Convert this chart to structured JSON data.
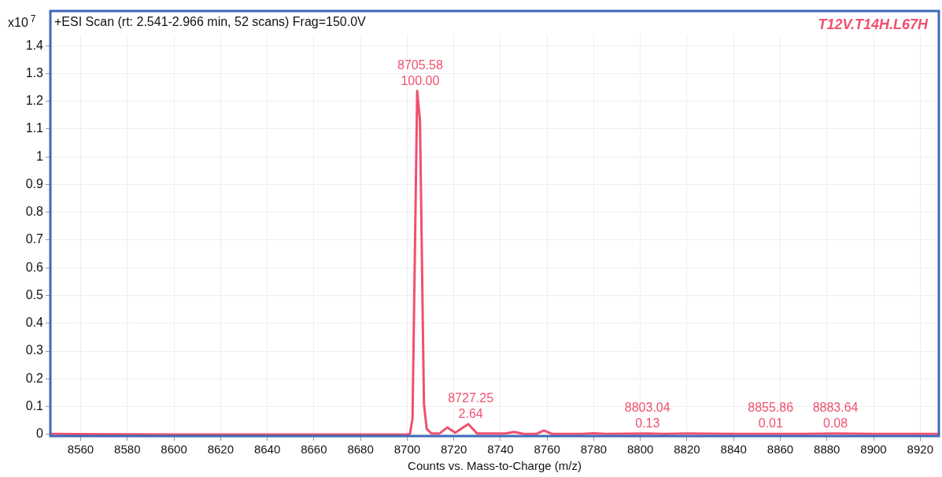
{
  "chart_data": {
    "type": "line",
    "title": "+ESI Scan (rt: 2.541-2.966 min, 52 scans) Frag=150.0V",
    "subtitle": "T12V.T14H.L67H",
    "xlabel": "Counts vs. Mass-to-Charge (m/z)",
    "ylabel": "x10$^{7}$",
    "series": [
      {
        "color": "#f0506e",
        "x": [
          8547,
          8560,
          8600,
          8650,
          8700,
          8701.2,
          8702.3,
          8704.3,
          8705.5,
          8707.2,
          8708.4,
          8710.5,
          8713.8,
          8717.2,
          8720.6,
          8726.2,
          8730,
          8742,
          8745.9,
          8750,
          8755.5,
          8758.6,
          8762,
          8775,
          8780,
          8785,
          8803,
          8810,
          8820,
          8840,
          8856,
          8870,
          8883.6,
          8900,
          8928
        ],
        "values": [
          0.002,
          0.001,
          0,
          0,
          0,
          0.002,
          0.057,
          1.237,
          1.13,
          0.11,
          0.02,
          0.003,
          0.003,
          0.025,
          0.006,
          0.037,
          0.003,
          0.003,
          0.009,
          0.002,
          0.002,
          0.014,
          0.002,
          0.002,
          0.004,
          0.002,
          0.003,
          0.002,
          0.003,
          0.002,
          0.002,
          0.002,
          0.003,
          0.002,
          0.002
        ]
      }
    ],
    "annotations": [
      {
        "text": "8705.58\n100.00",
        "x": 8705.58,
        "y": 1.237
      },
      {
        "text": "8727.25\n2.64",
        "x": 8727.25,
        "y": 0.037
      },
      {
        "text": "8803.04\n0.13",
        "x": 8803.04,
        "y": 0.003
      },
      {
        "text": "8855.86\n0.01",
        "x": 8855.86,
        "y": 0.002
      },
      {
        "text": "8883.64\n0.08",
        "x": 8883.64,
        "y": 0.003
      }
    ],
    "xlim": [
      8547,
      8928
    ],
    "xticks": [
      8560,
      8580,
      8600,
      8620,
      8640,
      8660,
      8680,
      8700,
      8720,
      8740,
      8760,
      8780,
      8800,
      8820,
      8840,
      8860,
      8880,
      8900,
      8920
    ],
    "ylim": [
      -0.006,
      1.44
    ],
    "yticks": [
      0,
      0.1,
      0.2,
      0.3,
      0.4,
      0.5,
      0.6,
      0.7,
      0.8,
      0.9,
      1,
      1.1,
      1.2,
      1.3,
      1.4
    ],
    "grid": true,
    "legend": false,
    "marker": "none",
    "line_style": "solid"
  }
}
